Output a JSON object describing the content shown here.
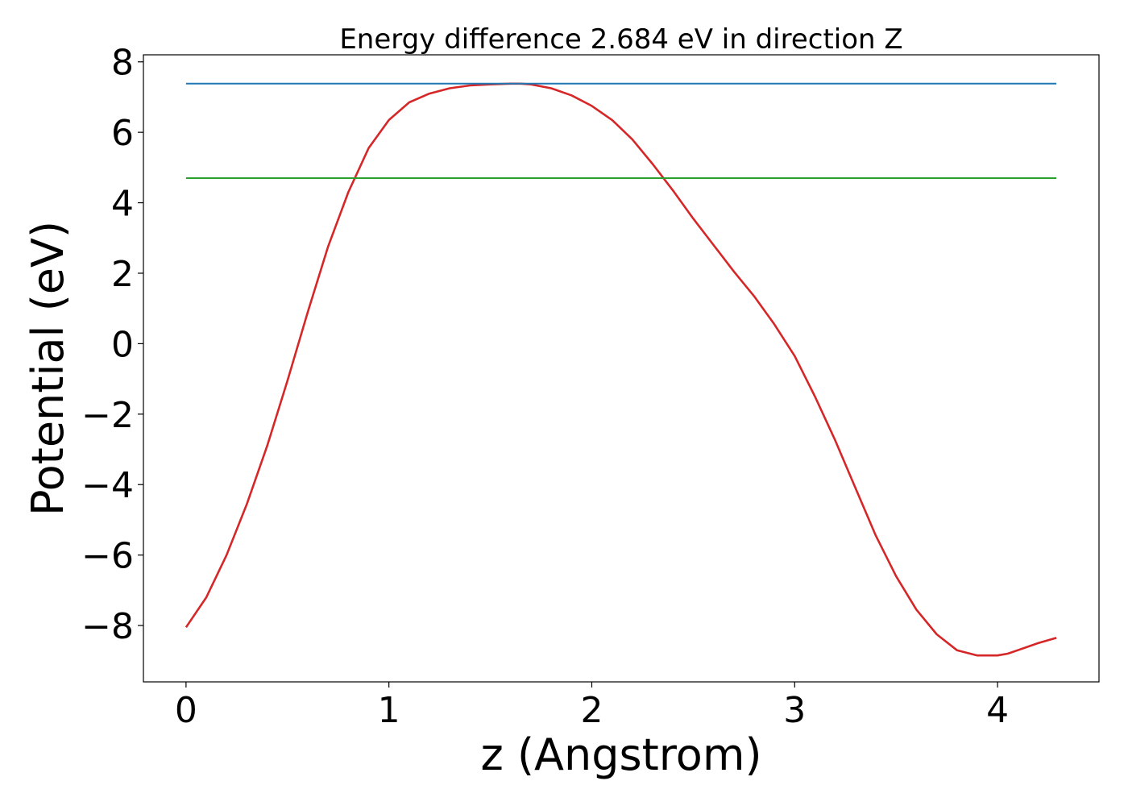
{
  "chart_data": {
    "type": "line",
    "title": "Energy difference 2.684 eV in direction Z",
    "xlabel": "z (Angstrom)",
    "ylabel": "Potential (eV)",
    "xlim": [
      -0.21,
      4.5
    ],
    "ylim": [
      -9.6,
      8.2
    ],
    "xticks": [
      0,
      1,
      2,
      3,
      4
    ],
    "xtick_labels": [
      "0",
      "1",
      "2",
      "3",
      "4"
    ],
    "yticks": [
      -8,
      -6,
      -4,
      -2,
      0,
      2,
      4,
      6,
      8
    ],
    "ytick_labels": [
      "−8",
      "−6",
      "−4",
      "−2",
      "0",
      "2",
      "4",
      "6",
      "8"
    ],
    "grid": false,
    "series": [
      {
        "color": "#d62728",
        "x": [
          0.0,
          0.1,
          0.2,
          0.3,
          0.4,
          0.5,
          0.6,
          0.7,
          0.8,
          0.9,
          1.0,
          1.1,
          1.2,
          1.3,
          1.4,
          1.5,
          1.6,
          1.65,
          1.7,
          1.8,
          1.9,
          2.0,
          2.1,
          2.2,
          2.3,
          2.4,
          2.5,
          2.6,
          2.7,
          2.8,
          2.9,
          3.0,
          3.1,
          3.2,
          3.3,
          3.4,
          3.5,
          3.6,
          3.7,
          3.8,
          3.9,
          4.0,
          4.05,
          4.1,
          4.2,
          4.29
        ],
        "y": [
          -8.05,
          -7.2,
          -6.0,
          -4.55,
          -2.9,
          -1.05,
          0.9,
          2.75,
          4.3,
          5.55,
          6.35,
          6.85,
          7.1,
          7.25,
          7.33,
          7.36,
          7.38,
          7.38,
          7.36,
          7.25,
          7.05,
          6.75,
          6.35,
          5.8,
          5.1,
          4.35,
          3.55,
          2.8,
          2.05,
          1.35,
          0.55,
          -0.35,
          -1.5,
          -2.75,
          -4.1,
          -5.45,
          -6.6,
          -7.55,
          -8.25,
          -8.7,
          -8.85,
          -8.85,
          -8.8,
          -8.7,
          -8.5,
          -8.35
        ]
      },
      {
        "color": "#1f77b4",
        "x": [
          0.0,
          4.29
        ],
        "y": [
          7.38,
          7.38
        ]
      },
      {
        "color": "#2ca02c",
        "x": [
          0.0,
          4.29
        ],
        "y": [
          4.7,
          4.7
        ]
      }
    ]
  }
}
